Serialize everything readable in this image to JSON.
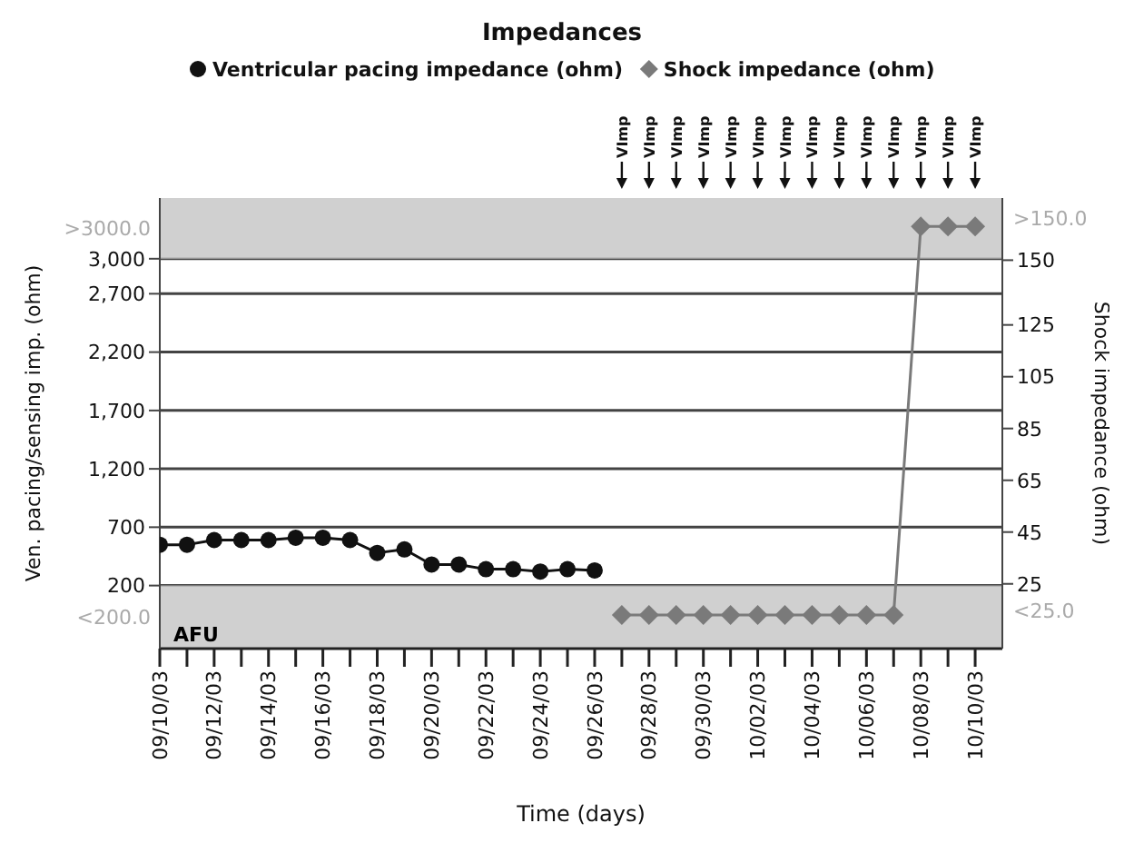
{
  "chart_data": {
    "type": "line",
    "title": "Impedances",
    "xlabel": "Time (days)",
    "ylabel": "Ven. pacing/sensing imp. (ohm)",
    "y2label": "Shock impedance (ohm)",
    "series": [
      {
        "name": "Ventricular pacing impedance (ohm)",
        "color": "#111111",
        "marker": "circle",
        "x": [
          "--09-10",
          "--09-11",
          "--09-12",
          "--09-13",
          "--09-14",
          "--09-15",
          "--09-16",
          "--09-17",
          "--09-18",
          "--09-19",
          "--09-20",
          "--09-21",
          "--09-22",
          "--09-23",
          "--09-24",
          "--09-25",
          "--09-26"
        ],
        "values": [
          550,
          550,
          590,
          590,
          590,
          610,
          610,
          590,
          480,
          510,
          380,
          380,
          340,
          340,
          320,
          340,
          330
        ]
      },
      {
        "name": "Shock impedance (ohm)",
        "color": "#7a7a7a",
        "marker": "diamond",
        "axis": "y2",
        "x": [
          "--09-27",
          "--09-28",
          "--09-29",
          "--09-30",
          "--10-01",
          "--10-02",
          "--10-03",
          "--10-04",
          "--10-05",
          "--10-06",
          "--10-07",
          "--10-08",
          "--10-09",
          "--10-10"
        ],
        "values": [
          13,
          13,
          13,
          13,
          13,
          13,
          13,
          13,
          13,
          13,
          13,
          163,
          163,
          163
        ]
      }
    ],
    "xlim": [
      "--09-10",
      "--10-11"
    ],
    "xticks": [
      {
        "value": "--09-10",
        "label": "09/10/03"
      },
      {
        "value": "--09-11",
        "label": null
      },
      {
        "value": "--09-12",
        "label": "09/12/03"
      },
      {
        "value": "--09-13",
        "label": null
      },
      {
        "value": "--09-14",
        "label": "09/14/03"
      },
      {
        "value": "--09-15",
        "label": null
      },
      {
        "value": "--09-16",
        "label": "09/16/03"
      },
      {
        "value": "--09-17",
        "label": null
      },
      {
        "value": "--09-18",
        "label": "09/18/03"
      },
      {
        "value": "--09-19",
        "label": null
      },
      {
        "value": "--09-20",
        "label": "09/20/03"
      },
      {
        "value": "--09-21",
        "label": null
      },
      {
        "value": "--09-22",
        "label": "09/22/03"
      },
      {
        "value": "--09-23",
        "label": null
      },
      {
        "value": "--09-24",
        "label": "09/24/03"
      },
      {
        "value": "--09-25",
        "label": null
      },
      {
        "value": "--09-26",
        "label": "09/26/03"
      },
      {
        "value": "--09-27",
        "label": null
      },
      {
        "value": "--09-28",
        "label": "09/28/03"
      },
      {
        "value": "--09-29",
        "label": null
      },
      {
        "value": "--09-30",
        "label": "09/30/03"
      },
      {
        "value": "--10-01",
        "label": null
      },
      {
        "value": "--10-02",
        "label": "10/02/03"
      },
      {
        "value": "--10-03",
        "label": null
      },
      {
        "value": "--10-04",
        "label": "10/04/03"
      },
      {
        "value": "--10-05",
        "label": null
      },
      {
        "value": "--10-06",
        "label": "10/06/03"
      },
      {
        "value": "--10-07",
        "label": null
      },
      {
        "value": "--10-08",
        "label": "10/08/03"
      },
      {
        "value": "--10-09",
        "label": null
      },
      {
        "value": "--10-10",
        "label": "10/10/03"
      }
    ],
    "ylim": [
      -340,
      3520
    ],
    "yticks": [
      200,
      700,
      {
        "value": 1200,
        "label": "1,200"
      },
      {
        "value": 1700,
        "label": "1,700"
      },
      {
        "value": 2200,
        "label": "2,200"
      },
      {
        "value": 2700,
        "label": "2,700"
      },
      {
        "value": 3000,
        "label": "3,000"
      }
    ],
    "y2lim": [
      0,
      174
    ],
    "y2ticks": [
      25,
      45,
      65,
      85,
      105,
      125,
      150
    ],
    "bands": [
      {
        "axis": "y",
        "from": -340,
        "to": 200,
        "label": "<200.0",
        "color": "#c8c8c8"
      },
      {
        "axis": "y",
        "from": 3000,
        "to": 3520,
        "label": ">3000.0",
        "color": "#c8c8c8"
      }
    ],
    "annotations": [
      "AFU",
      "VImp",
      "VImp",
      "VImp",
      "VImp",
      "VImp",
      "VImp",
      "VImp",
      "VImp",
      "VImp",
      "VImp",
      "VImp",
      "VImp",
      "VImp",
      "VImp",
      "<25.0",
      ">150.0"
    ],
    "grid": "y",
    "legend": "top",
    "line_style": "solid"
  }
}
